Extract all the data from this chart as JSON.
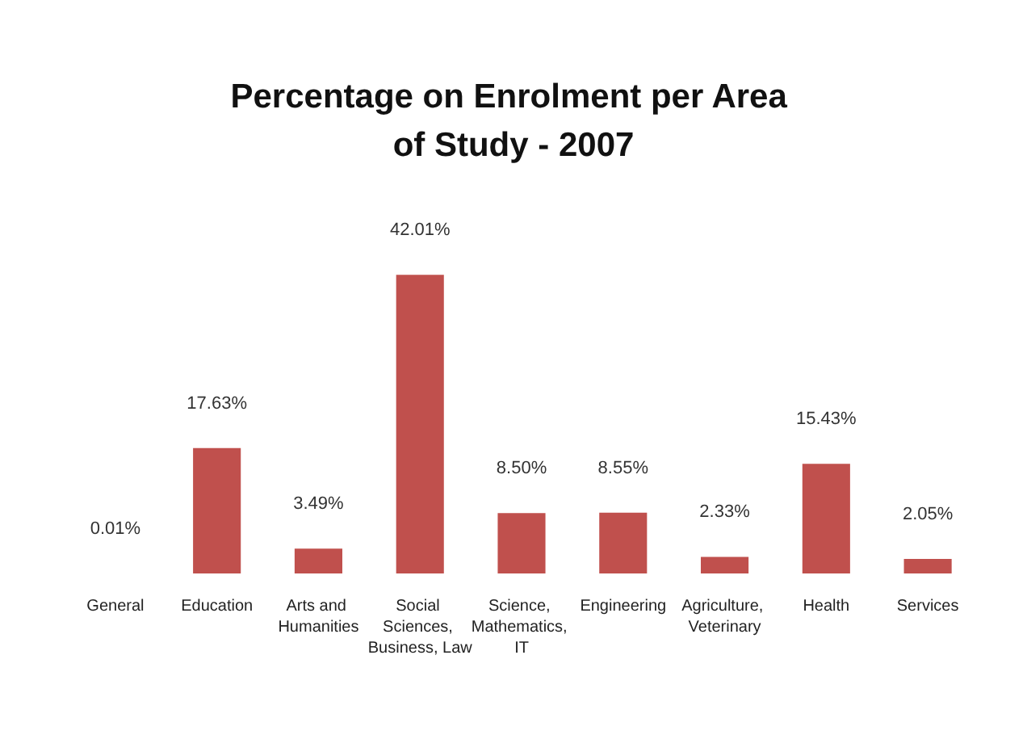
{
  "chart_data": {
    "type": "bar",
    "title": "Percentage on Enrolment per Area of Study - 2007",
    "categories": [
      "General",
      "Education",
      "Arts and Humanities",
      "Social Sciences, Business, Law",
      "Science, Mathematics, IT",
      "Engineering",
      "Agriculture, Veterinary",
      "Health",
      "Services"
    ],
    "values": [
      0.01,
      17.63,
      3.49,
      42.01,
      8.5,
      8.55,
      2.33,
      15.43,
      2.05
    ],
    "value_labels": [
      "0.01%",
      "17.63%",
      "3.49%",
      "42.01%",
      "8.50%",
      "8.55%",
      "2.33%",
      "15.43%",
      "2.05%"
    ],
    "color": "#c0504d"
  }
}
